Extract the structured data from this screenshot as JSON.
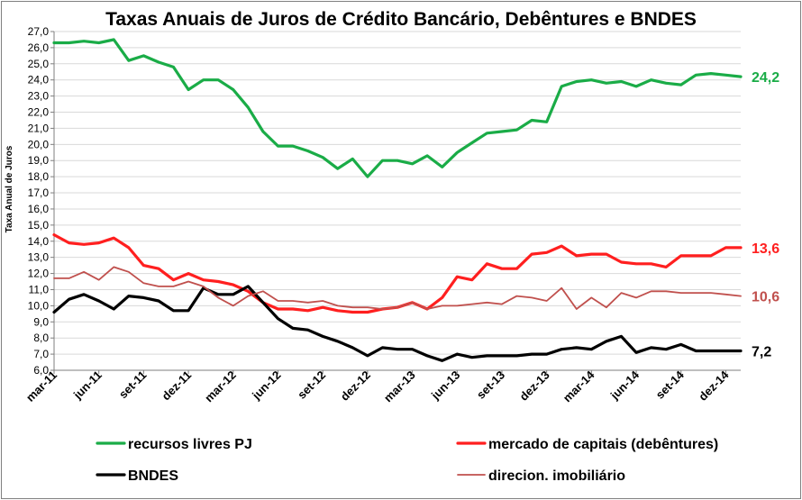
{
  "chart_data": {
    "type": "line",
    "title": "Taxas Anuais de Juros de Crédito Bancário, Debêntures e BNDES",
    "ylabel": "Taxa Anual de Juros",
    "xlabel": "",
    "ylim": [
      6.0,
      27.0
    ],
    "ystep": 1.0,
    "ytick_labels": [
      "6,0",
      "7,0",
      "8,0",
      "9,0",
      "10,0",
      "11,0",
      "12,0",
      "13,0",
      "14,0",
      "15,0",
      "16,0",
      "17,0",
      "18,0",
      "19,0",
      "20,0",
      "21,0",
      "22,0",
      "23,0",
      "24,0",
      "25,0",
      "26,0",
      "27,0"
    ],
    "x": [
      "mar-11",
      "abr-11",
      "mai-11",
      "jun-11",
      "jul-11",
      "ago-11",
      "set-11",
      "out-11",
      "nov-11",
      "dez-11",
      "jan-12",
      "fev-12",
      "mar-12",
      "abr-12",
      "mai-12",
      "jun-12",
      "jul-12",
      "ago-12",
      "set-12",
      "out-12",
      "nov-12",
      "dez-12",
      "jan-13",
      "fev-13",
      "mar-13",
      "abr-13",
      "mai-13",
      "jun-13",
      "jul-13",
      "ago-13",
      "set-13",
      "out-13",
      "nov-13",
      "dez-13",
      "jan-14",
      "fev-14",
      "mar-14",
      "abr-14",
      "mai-14",
      "jun-14",
      "jul-14",
      "ago-14",
      "set-14",
      "out-14",
      "nov-14",
      "dez-14",
      "jan-15"
    ],
    "x_tick_labels": [
      "mar-11",
      "jun-11",
      "set-11",
      "dez-11",
      "mar-12",
      "jun-12",
      "set-12",
      "dez-12",
      "mar-13",
      "jun-13",
      "set-13",
      "dez-13",
      "mar-14",
      "jun-14",
      "set-14",
      "dez-14"
    ],
    "grid": true,
    "legend_position": "bottom",
    "series": [
      {
        "name": "recursos livres PJ",
        "color": "#1aac47",
        "width": 3.2,
        "end_label": "24,2",
        "values": [
          26.3,
          26.3,
          26.4,
          26.3,
          26.5,
          25.2,
          25.5,
          25.1,
          24.8,
          23.4,
          24.0,
          24.0,
          23.4,
          22.3,
          20.8,
          19.9,
          19.9,
          19.6,
          19.2,
          18.5,
          19.1,
          18.0,
          19.0,
          19.0,
          18.8,
          19.3,
          18.6,
          19.5,
          20.1,
          20.7,
          20.8,
          20.9,
          21.5,
          21.4,
          23.6,
          23.9,
          24.0,
          23.8,
          23.9,
          23.6,
          24.0,
          23.8,
          23.7,
          24.3,
          24.4,
          24.3,
          24.2
        ]
      },
      {
        "name": "mercado de capitais (debêntures)",
        "color": "#ff1f1f",
        "width": 3.2,
        "end_label": "13,6",
        "values": [
          14.4,
          13.9,
          13.8,
          13.9,
          14.2,
          13.6,
          12.5,
          12.3,
          11.6,
          12.0,
          11.6,
          11.5,
          11.3,
          10.9,
          10.2,
          9.8,
          9.8,
          9.7,
          9.9,
          9.7,
          9.6,
          9.6,
          9.8,
          9.9,
          10.2,
          9.8,
          10.5,
          11.8,
          11.6,
          12.6,
          12.3,
          12.3,
          13.2,
          13.3,
          13.7,
          13.1,
          13.2,
          13.2,
          12.7,
          12.6,
          12.6,
          12.4,
          13.1,
          13.1,
          13.1,
          13.6,
          13.6
        ]
      },
      {
        "name": "BNDES",
        "color": "#000000",
        "width": 3.2,
        "end_label": "7,2",
        "values": [
          9.6,
          10.4,
          10.7,
          10.3,
          9.8,
          10.6,
          10.5,
          10.3,
          9.7,
          9.7,
          11.1,
          10.7,
          10.7,
          11.2,
          10.2,
          9.2,
          8.6,
          8.5,
          8.1,
          7.8,
          7.4,
          6.9,
          7.4,
          7.3,
          7.3,
          6.9,
          6.6,
          7.0,
          6.8,
          6.9,
          6.9,
          6.9,
          7.0,
          7.0,
          7.3,
          7.4,
          7.3,
          7.8,
          8.1,
          7.1,
          7.4,
          7.3,
          7.6,
          7.2,
          7.2,
          7.2,
          7.2
        ]
      },
      {
        "name": "direcion. imobiliário",
        "color": "#c0504d",
        "width": 1.8,
        "end_label": "10,6",
        "values": [
          11.7,
          11.7,
          12.1,
          11.6,
          12.4,
          12.1,
          11.4,
          11.2,
          11.2,
          11.5,
          11.2,
          10.5,
          10.0,
          10.6,
          10.9,
          10.3,
          10.3,
          10.2,
          10.3,
          10.0,
          9.9,
          9.9,
          9.8,
          9.9,
          10.2,
          9.8,
          10.0,
          10.0,
          10.1,
          10.2,
          10.1,
          10.6,
          10.5,
          10.3,
          11.1,
          9.8,
          10.5,
          9.9,
          10.8,
          10.5,
          10.9,
          10.9,
          10.8,
          10.8,
          10.8,
          10.7,
          10.6
        ]
      }
    ]
  }
}
